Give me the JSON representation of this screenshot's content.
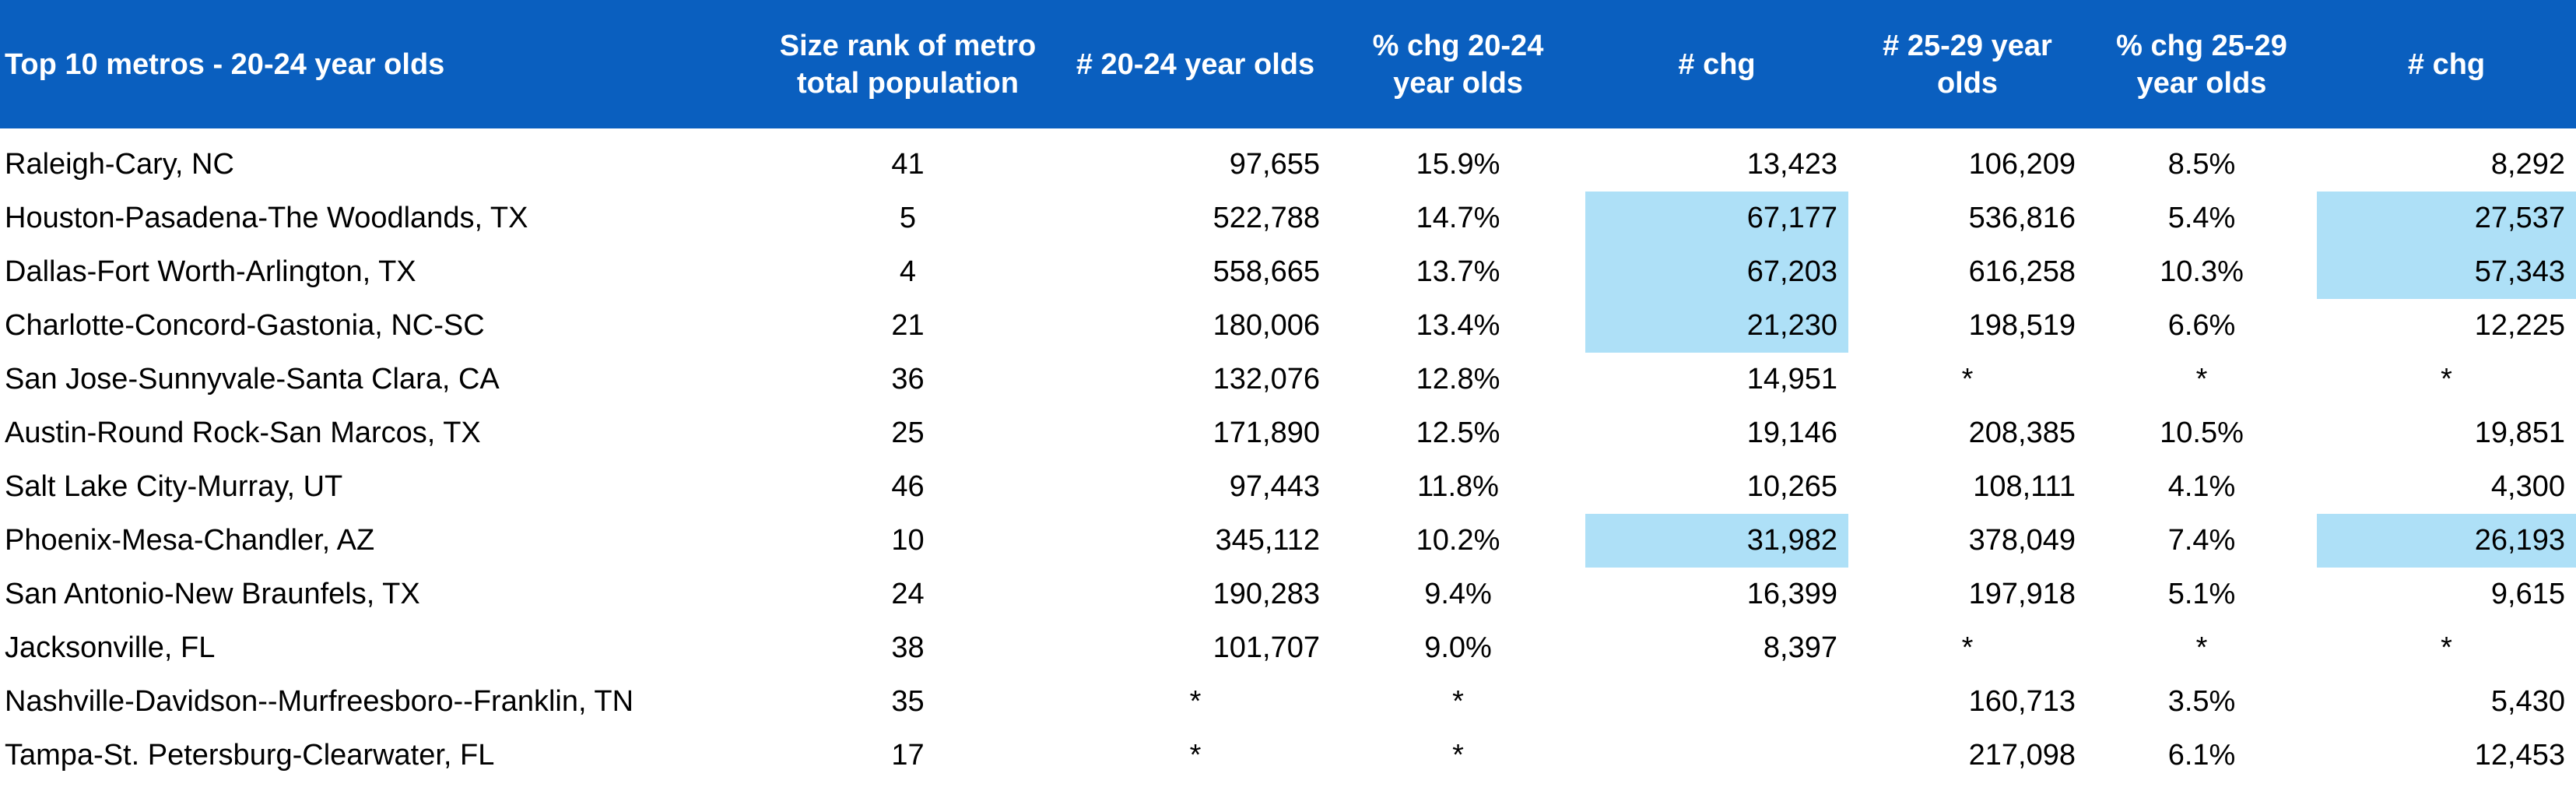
{
  "table": {
    "header": [
      "Top 10 metros - 20-24 year olds",
      "Size rank of metro total population",
      "# 20-24 year olds",
      "% chg 20-24 year olds",
      "# chg",
      "# 25-29 year olds",
      "% chg 25-29 year olds",
      "# chg"
    ],
    "rows": [
      [
        "Raleigh-Cary, NC",
        "41",
        "97,655",
        "15.9%",
        "13,423",
        "106,209",
        "8.5%",
        "8,292"
      ],
      [
        "Houston-Pasadena-The Woodlands, TX",
        "5",
        "522,788",
        "14.7%",
        "67,177",
        "536,816",
        "5.4%",
        "27,537"
      ],
      [
        "Dallas-Fort Worth-Arlington, TX",
        "4",
        "558,665",
        "13.7%",
        "67,203",
        "616,258",
        "10.3%",
        "57,343"
      ],
      [
        "Charlotte-Concord-Gastonia, NC-SC",
        "21",
        "180,006",
        "13.4%",
        "21,230",
        "198,519",
        "6.6%",
        "12,225"
      ],
      [
        "San Jose-Sunnyvale-Santa Clara, CA",
        "36",
        "132,076",
        "12.8%",
        "14,951",
        "*",
        "*",
        "*"
      ],
      [
        "Austin-Round Rock-San Marcos, TX",
        "25",
        "171,890",
        "12.5%",
        "19,146",
        "208,385",
        "10.5%",
        "19,851"
      ],
      [
        "Salt Lake City-Murray, UT",
        "46",
        "97,443",
        "11.8%",
        "10,265",
        "108,111",
        "4.1%",
        "4,300"
      ],
      [
        "Phoenix-Mesa-Chandler, AZ",
        "10",
        "345,112",
        "10.2%",
        "31,982",
        "378,049",
        "7.4%",
        "26,193"
      ],
      [
        "San Antonio-New Braunfels, TX",
        "24",
        "190,283",
        "9.4%",
        "16,399",
        "197,918",
        "5.1%",
        "9,615"
      ],
      [
        "Jacksonville, FL",
        "38",
        "101,707",
        "9.0%",
        "8,397",
        "*",
        "*",
        "*"
      ],
      [
        "Nashville-Davidson--Murfreesboro--Franklin, TN",
        "35",
        "*",
        "*",
        null,
        "160,713",
        "3.5%",
        "5,430"
      ],
      [
        "Tampa-St. Petersburg-Clearwater, FL",
        "17",
        "*",
        "*",
        null,
        "217,098",
        "6.1%",
        "12,453"
      ]
    ],
    "highlighted_cells": [
      [
        1,
        4
      ],
      [
        2,
        4
      ],
      [
        3,
        4
      ],
      [
        7,
        4
      ],
      [
        1,
        7
      ],
      [
        2,
        7
      ],
      [
        7,
        7
      ]
    ],
    "highlight_color": "#aee0f7"
  }
}
